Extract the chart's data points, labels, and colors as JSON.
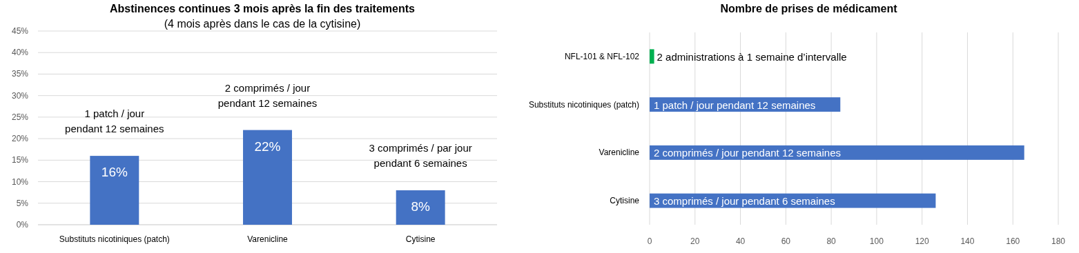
{
  "chart_data": [
    {
      "type": "bar",
      "title": "Abstinences continues 3 mois après la fin des traitements",
      "subtitle": "(4 mois après dans le cas de la cytisine)",
      "categories": [
        "Substituts nicotiniques (patch)",
        "Varenicline",
        "Cytisine"
      ],
      "values": [
        16,
        22,
        8
      ],
      "color": "#4472c4",
      "value_labels": [
        "16%",
        "22%",
        "8%"
      ],
      "ylim": [
        0,
        45
      ],
      "yticks": [
        {
          "value": 0,
          "label": "0%"
        },
        {
          "value": 5,
          "label": "5%"
        },
        {
          "value": 10,
          "label": "10%"
        },
        {
          "value": 15,
          "label": "15%"
        },
        {
          "value": 20,
          "label": "20%"
        },
        {
          "value": 25,
          "label": "25%"
        },
        {
          "value": 30,
          "label": "30%"
        },
        {
          "value": 35,
          "label": "35%"
        },
        {
          "value": 40,
          "label": "40%"
        },
        {
          "value": 45,
          "label": "45%"
        }
      ],
      "grid": "y",
      "annotations": [
        "1 patch / jour\npendant 12 semaines",
        "2 comprimés / jour\npendant 12 semaines",
        "3 comprimés / par jour\npendant 6 semaines"
      ]
    },
    {
      "type": "bar",
      "orientation": "horizontal",
      "title": "Nombre de prises de médicament",
      "categories": [
        "NFL-101  &  NFL-102",
        "Substituts nicotiniques (patch)",
        "Varenicline",
        "Cytisine"
      ],
      "values": [
        2,
        84,
        165,
        126
      ],
      "colors": [
        "#00b050",
        "#4472c4",
        "#4472c4",
        "#4472c4"
      ],
      "annotations": [
        "2 administrations à 1 semaine d’intervalle",
        "1 patch / jour pendant 12 semaines",
        "2 comprimés / jour pendant 12 semaines",
        "3 comprimés / jour pendant 6 semaines"
      ],
      "xlim": [
        0,
        180
      ],
      "xticks": [
        0,
        20,
        40,
        60,
        80,
        100,
        120,
        140,
        160,
        180
      ],
      "grid": "x"
    }
  ]
}
